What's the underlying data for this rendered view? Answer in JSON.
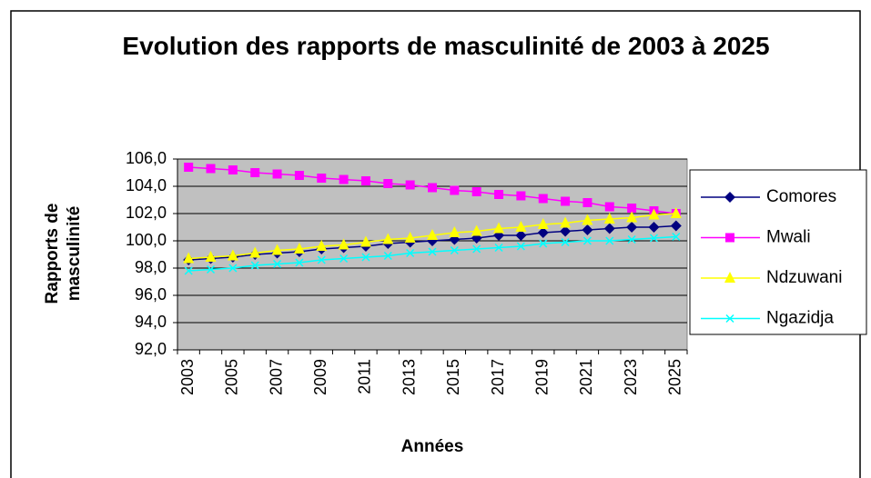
{
  "chart_data": {
    "type": "line",
    "title": "Evolution des rapports de masculinité de 2003 à 2025",
    "x_label": "Années",
    "y_label": "Rapports de masculinité",
    "categories": [
      "2003",
      null,
      "2005",
      null,
      "2007",
      null,
      "2009",
      null,
      "2011",
      null,
      "2013",
      null,
      "2015",
      null,
      "2017",
      null,
      "2019",
      null,
      "2021",
      null,
      "2023",
      null,
      "2025"
    ],
    "series": [
      {
        "name": "Comores",
        "color": "#000080",
        "marker": "diamond",
        "values": [
          98.6,
          98.7,
          98.8,
          99.0,
          99.1,
          99.2,
          99.4,
          99.5,
          99.6,
          99.8,
          99.9,
          100.0,
          100.1,
          100.2,
          100.4,
          100.4,
          100.6,
          100.7,
          100.8,
          100.9,
          101.0,
          101.0,
          101.1
        ]
      },
      {
        "name": "Mwali",
        "color": "#ff00ff",
        "marker": "square",
        "values": [
          105.4,
          105.3,
          105.2,
          105.0,
          104.9,
          104.8,
          104.6,
          104.5,
          104.4,
          104.2,
          104.1,
          103.9,
          103.7,
          103.6,
          103.4,
          103.3,
          103.1,
          102.9,
          102.8,
          102.5,
          102.4,
          102.2,
          102.0
        ]
      },
      {
        "name": "Ndzuwani",
        "color": "#ffff00",
        "marker": "triangle",
        "values": [
          98.7,
          98.8,
          98.9,
          99.1,
          99.3,
          99.4,
          99.6,
          99.7,
          99.9,
          100.1,
          100.2,
          100.4,
          100.6,
          100.7,
          100.9,
          101.0,
          101.2,
          101.3,
          101.5,
          101.6,
          101.7,
          101.9,
          102.0
        ]
      },
      {
        "name": "Ngazidja",
        "color": "#00ffff",
        "marker": "x",
        "values": [
          97.8,
          97.9,
          98.0,
          98.2,
          98.3,
          98.4,
          98.6,
          98.7,
          98.8,
          98.9,
          99.1,
          99.2,
          99.3,
          99.4,
          99.5,
          99.6,
          99.8,
          99.9,
          100.0,
          100.0,
          100.1,
          100.2,
          100.3
        ]
      }
    ],
    "ylim": [
      92,
      106
    ],
    "yticks": [
      {
        "value": 92,
        "label": "92,0"
      },
      {
        "value": 94,
        "label": "94,0"
      },
      {
        "value": 96,
        "label": "96,0"
      },
      {
        "value": 98,
        "label": "98,0"
      },
      {
        "value": 100,
        "label": "100,0"
      },
      {
        "value": 102,
        "label": "102,0"
      },
      {
        "value": 104,
        "label": "104,0"
      },
      {
        "value": 106,
        "label": "106,0"
      }
    ],
    "grid": true,
    "plot_background": "#c0c0c0",
    "legend": "right"
  }
}
